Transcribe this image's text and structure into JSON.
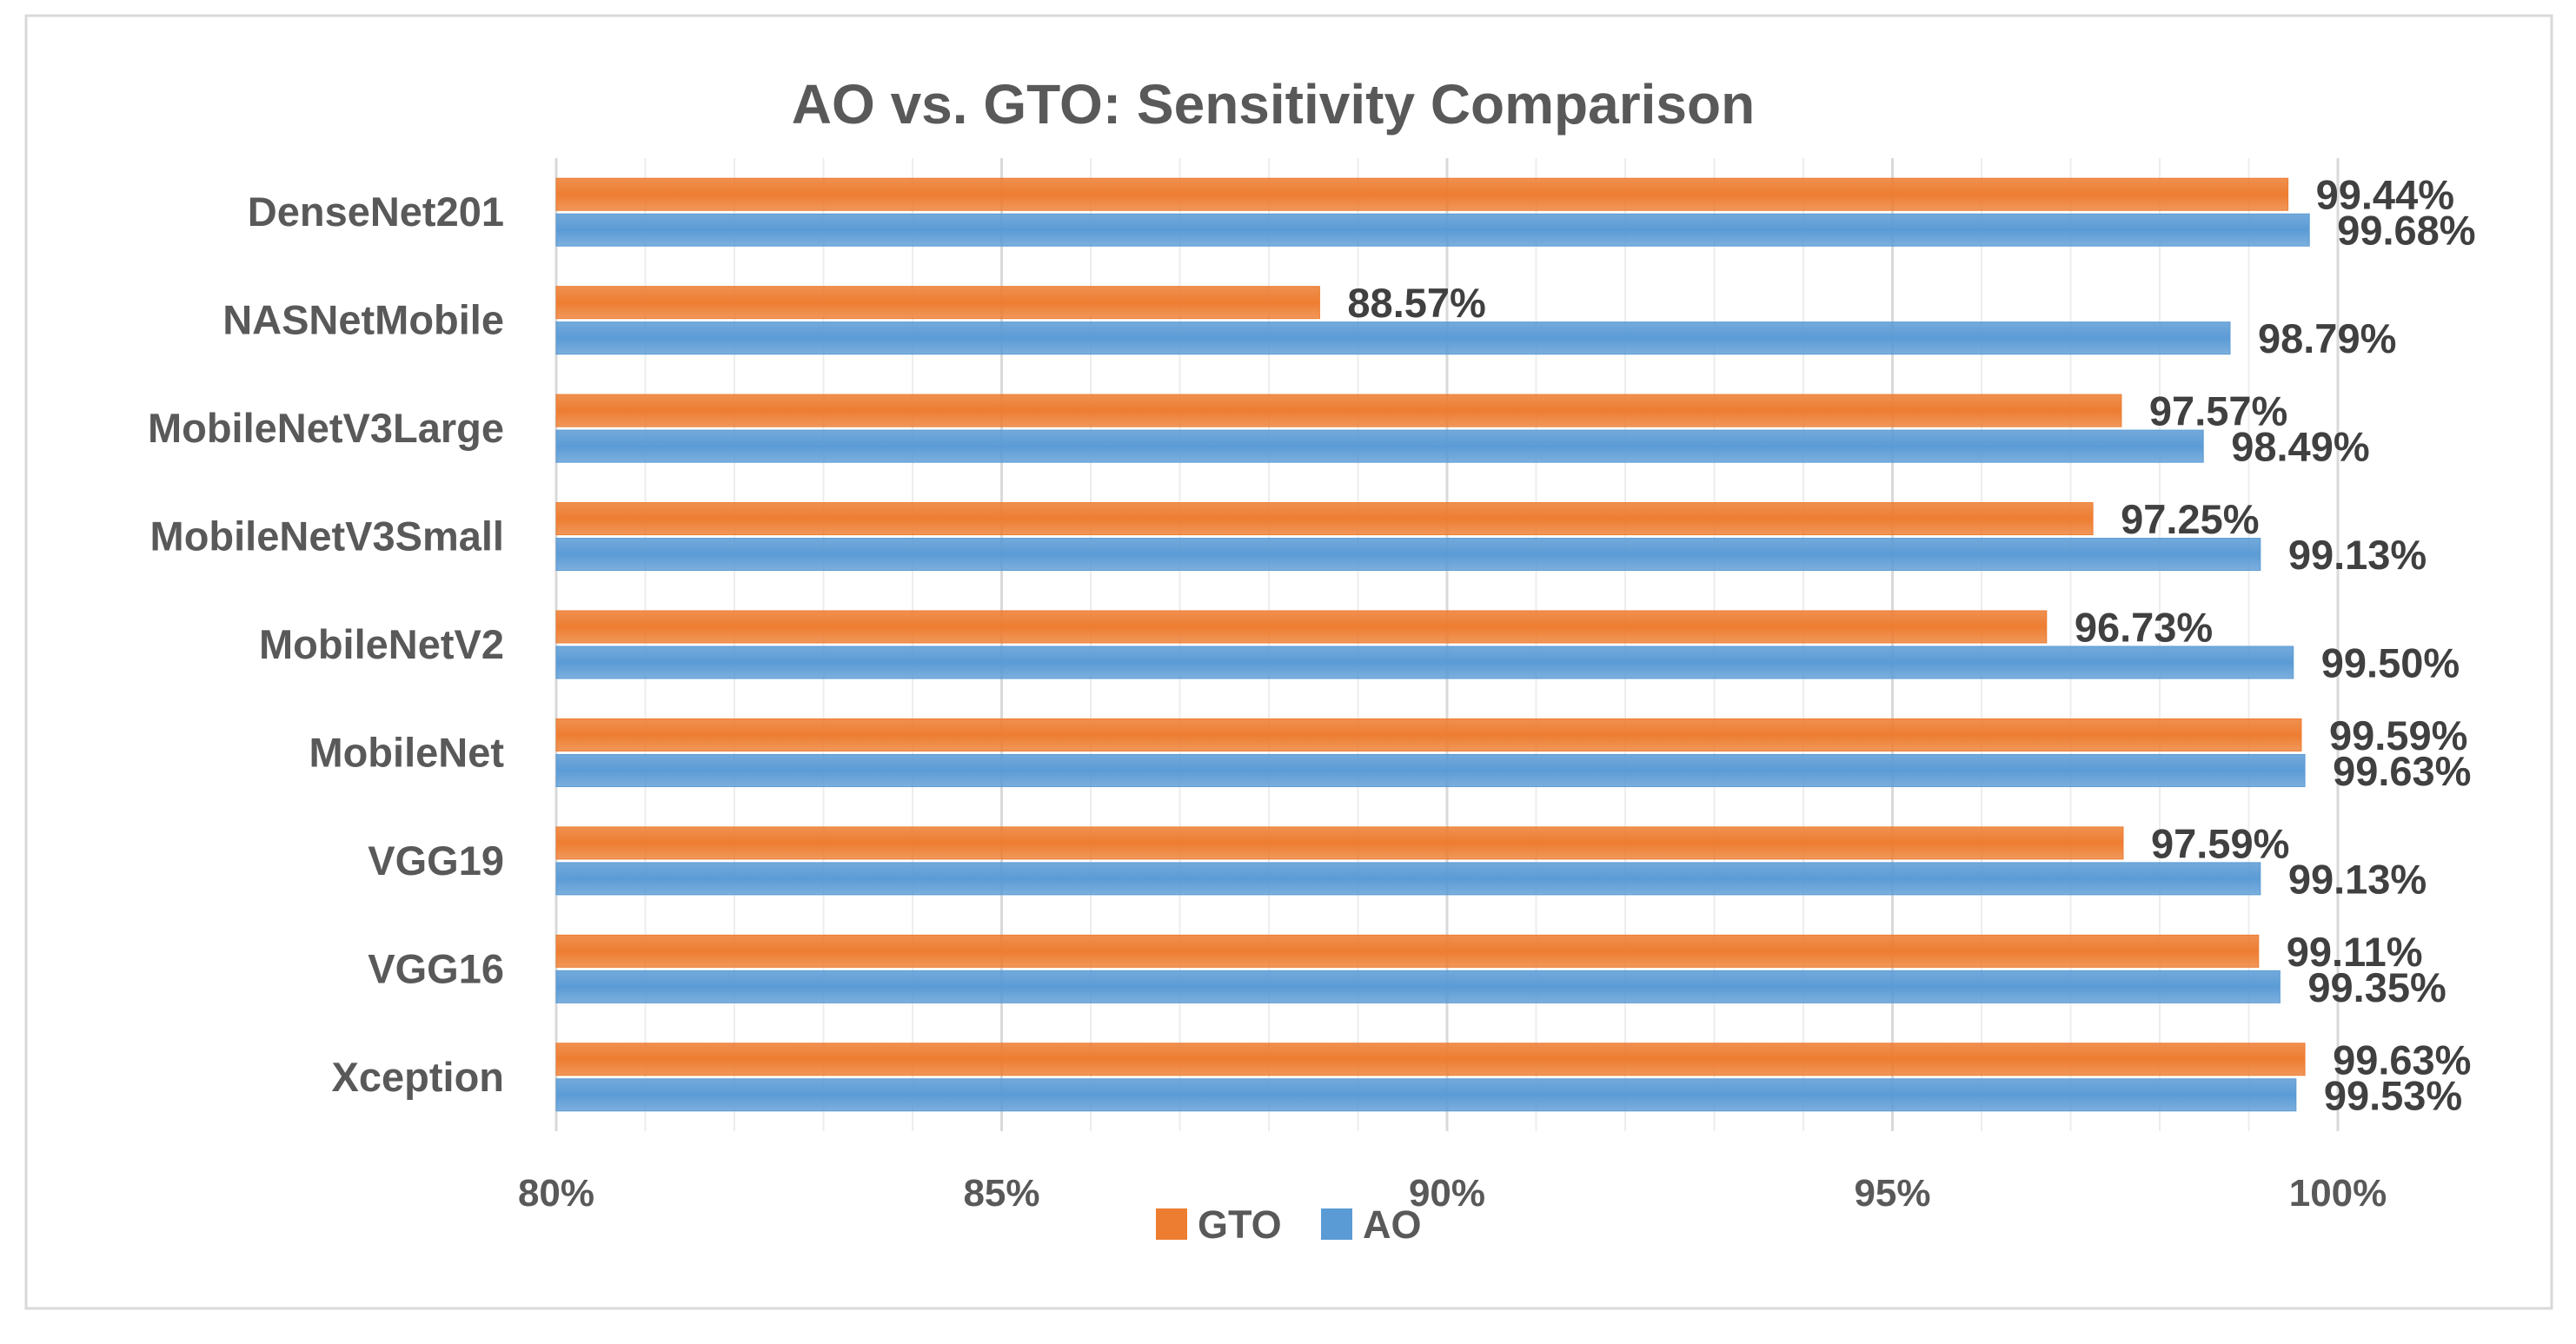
{
  "chart_data": {
    "type": "bar",
    "orientation": "horizontal",
    "title": "AO vs. GTO: Sensitivity Comparison",
    "xlabel": "",
    "ylabel": "",
    "xlim": [
      80,
      100
    ],
    "x_ticks": [
      "80%",
      "85%",
      "90%",
      "95%",
      "100%"
    ],
    "x_tick_values": [
      80,
      85,
      90,
      95,
      100
    ],
    "grid": "vertical",
    "legend": "bottom-center",
    "categories": [
      "DenseNet201",
      "NASNetMobile",
      "MobileNetV3Large",
      "MobileNetV3Small",
      "MobileNetV2",
      "MobileNet",
      "VGG19",
      "VGG16",
      "Xception"
    ],
    "series": [
      {
        "name": "GTO",
        "color": "#ED7D31",
        "values": [
          99.44,
          88.57,
          97.57,
          97.25,
          96.73,
          99.59,
          97.59,
          99.11,
          99.63
        ],
        "labels": [
          "99.44%",
          "88.57%",
          "97.57%",
          "97.25%",
          "96.73%",
          "99.59%",
          "97.59%",
          "99.11%",
          "99.63%"
        ]
      },
      {
        "name": "AO",
        "color": "#5B9BD5",
        "values": [
          99.68,
          98.79,
          98.49,
          99.13,
          99.5,
          99.63,
          99.13,
          99.35,
          99.53
        ],
        "labels": [
          "99.68%",
          "98.79%",
          "98.49%",
          "99.13%",
          "99.50%",
          "99.63%",
          "99.13%",
          "99.35%",
          "99.53%"
        ]
      }
    ],
    "highlight": {
      "series": "AO",
      "category": "DenseNet201",
      "color": "#FF0000"
    },
    "label_color": "#404040",
    "axis_text_color": "#595959"
  }
}
